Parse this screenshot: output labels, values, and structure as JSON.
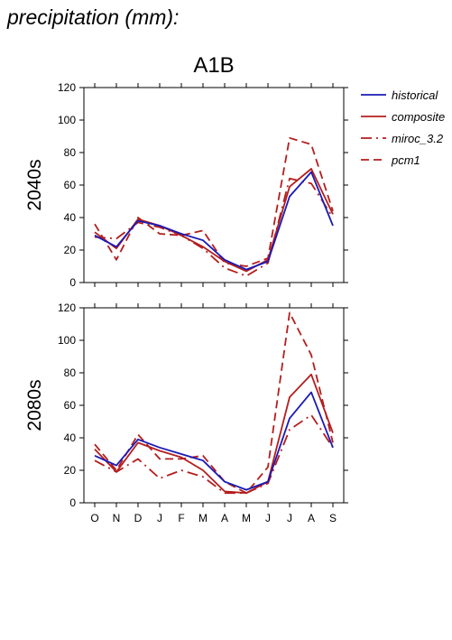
{
  "figure_title": "precipitation (mm):",
  "chart_data": {
    "type": "line",
    "title": "A1B",
    "categories": [
      "O",
      "N",
      "D",
      "J",
      "F",
      "M",
      "A",
      "M",
      "J",
      "J",
      "A",
      "S"
    ],
    "ylim": [
      0,
      120
    ],
    "yticks": [
      0,
      20,
      40,
      60,
      80,
      100,
      120
    ],
    "legend": {
      "placement": "right",
      "entries": [
        "historical",
        "composite",
        "miroc_3.2",
        "pcm1"
      ]
    },
    "styles": {
      "historical": {
        "color": "#1a1ab4",
        "dash": "solid"
      },
      "composite": {
        "color": "#b41e1e",
        "dash": "solid"
      },
      "miroc_3.2": {
        "color": "#b41e1e",
        "dash": "dashdot"
      },
      "pcm1": {
        "color": "#b41e1e",
        "dash": "dashed"
      }
    },
    "panels": [
      {
        "label": "2040s",
        "series": [
          {
            "name": "historical",
            "values": [
              29,
              22,
              38,
              35,
              30,
              26,
              14,
              8,
              13,
              53,
              68,
              35
            ]
          },
          {
            "name": "composite",
            "values": [
              31,
              21,
              39,
              35,
              29,
              22,
              13,
              7,
              14,
              59,
              70,
              42
            ]
          },
          {
            "name": "miroc_3.2",
            "values": [
              28,
              27,
              37,
              34,
              29,
              21,
              9,
              4,
              12,
              64,
              61,
              40
            ]
          },
          {
            "name": "pcm1",
            "values": [
              36,
              14,
              40,
              30,
              29,
              32,
              12,
              10,
              15,
              89,
              85,
              44
            ]
          }
        ]
      },
      {
        "label": "2080s",
        "series": [
          {
            "name": "historical",
            "values": [
              29,
              23,
              39,
              34,
              30,
              26,
              13,
              8,
              13,
              52,
              68,
              34
            ]
          },
          {
            "name": "composite",
            "values": [
              33,
              19,
              37,
              32,
              28,
              20,
              7,
              6,
              13,
              65,
              79,
              43
            ]
          },
          {
            "name": "miroc_3.2",
            "values": [
              26,
              19,
              27,
              15,
              20,
              16,
              6,
              6,
              12,
              45,
              54,
              34
            ]
          },
          {
            "name": "pcm1",
            "values": [
              36,
              20,
              42,
              27,
              27,
              29,
              13,
              6,
              22,
              117,
              91,
              37
            ]
          }
        ]
      }
    ]
  }
}
